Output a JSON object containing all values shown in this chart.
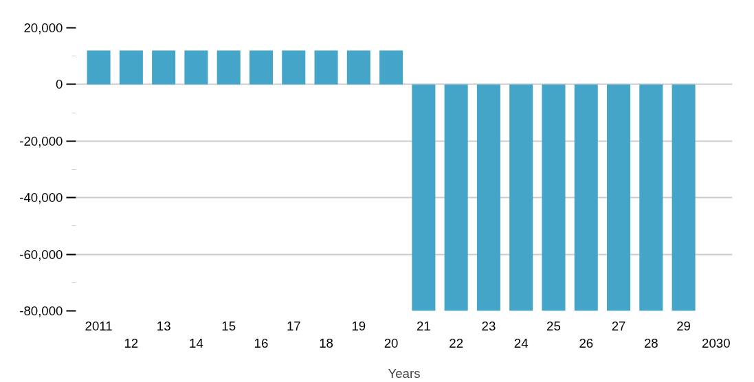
{
  "chart_data": {
    "type": "bar",
    "xlabel": "Years",
    "categories": [
      "2011",
      "12",
      "13",
      "14",
      "15",
      "16",
      "17",
      "18",
      "19",
      "20",
      "21",
      "22",
      "23",
      "24",
      "25",
      "26",
      "27",
      "28",
      "29",
      "2030"
    ],
    "values": [
      12000,
      12000,
      12000,
      12000,
      12000,
      12000,
      12000,
      12000,
      12000,
      12000,
      -80000,
      -80000,
      -80000,
      -80000,
      -80000,
      -80000,
      -80000,
      -80000,
      -80000,
      null
    ],
    "color": "#44a5c9",
    "ylim": [
      -80000,
      20000
    ],
    "yticks": [
      {
        "value": -80000,
        "label": "-80,000"
      },
      {
        "value": -60000,
        "label": "-60,000"
      },
      {
        "value": -40000,
        "label": "-40,000"
      },
      {
        "value": -20000,
        "label": "-20,000"
      },
      {
        "value": 0,
        "label": "0"
      },
      {
        "value": 20000,
        "label": "20,000"
      }
    ],
    "grid": "y"
  }
}
